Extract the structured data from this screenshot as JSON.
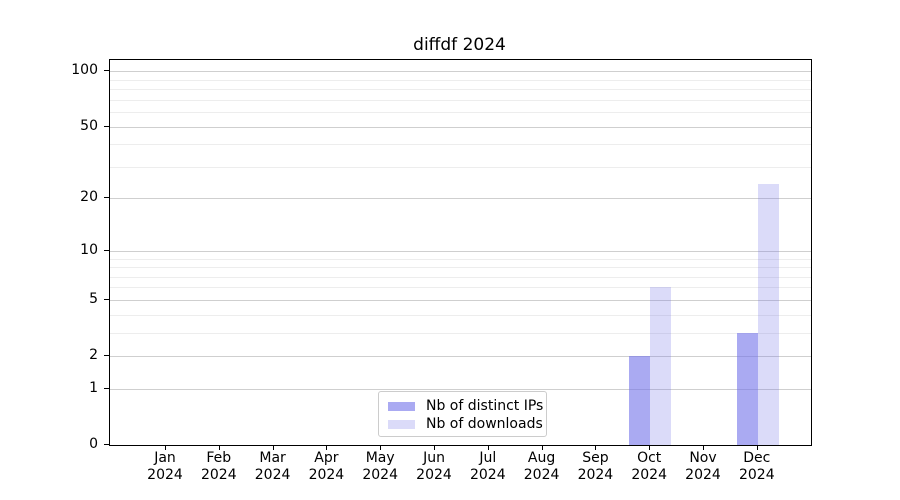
{
  "title": "diffdf 2024",
  "chart_data": {
    "type": "bar",
    "title": "diffdf 2024",
    "categories": [
      "Jan",
      "Feb",
      "Mar",
      "Apr",
      "May",
      "Jun",
      "Jul",
      "Aug",
      "Sep",
      "Oct",
      "Nov",
      "Dec"
    ],
    "year_label": "2024",
    "series": [
      {
        "name": "Nb of distinct IPs",
        "color": "rgba(113,113,233,0.6)",
        "values": [
          0,
          0,
          0,
          0,
          0,
          0,
          0,
          0,
          0,
          2,
          0,
          3
        ]
      },
      {
        "name": "Nb of downloads",
        "color": "rgba(113,113,233,0.25)",
        "values": [
          0,
          0,
          0,
          0,
          0,
          0,
          0,
          0,
          0,
          6,
          0,
          24
        ]
      }
    ],
    "xlabel": "",
    "ylabel": "",
    "y_scale": "log1p",
    "ylim": [
      0,
      115
    ],
    "y_major_ticks": [
      0,
      1,
      2,
      5,
      10,
      20,
      50,
      100
    ],
    "y_minor_gridlines": [
      3,
      4,
      6,
      7,
      8,
      9,
      30,
      40,
      60,
      70,
      80,
      90
    ],
    "grid": "horizontal major+minor",
    "legend_position": "lower center"
  },
  "colors": {
    "bar_base": "#7171e9",
    "major_grid": "#cfcfcf",
    "minor_grid": "#ededed",
    "axis": "#000000",
    "legend_border": "#cccccc",
    "background": "#ffffff"
  }
}
